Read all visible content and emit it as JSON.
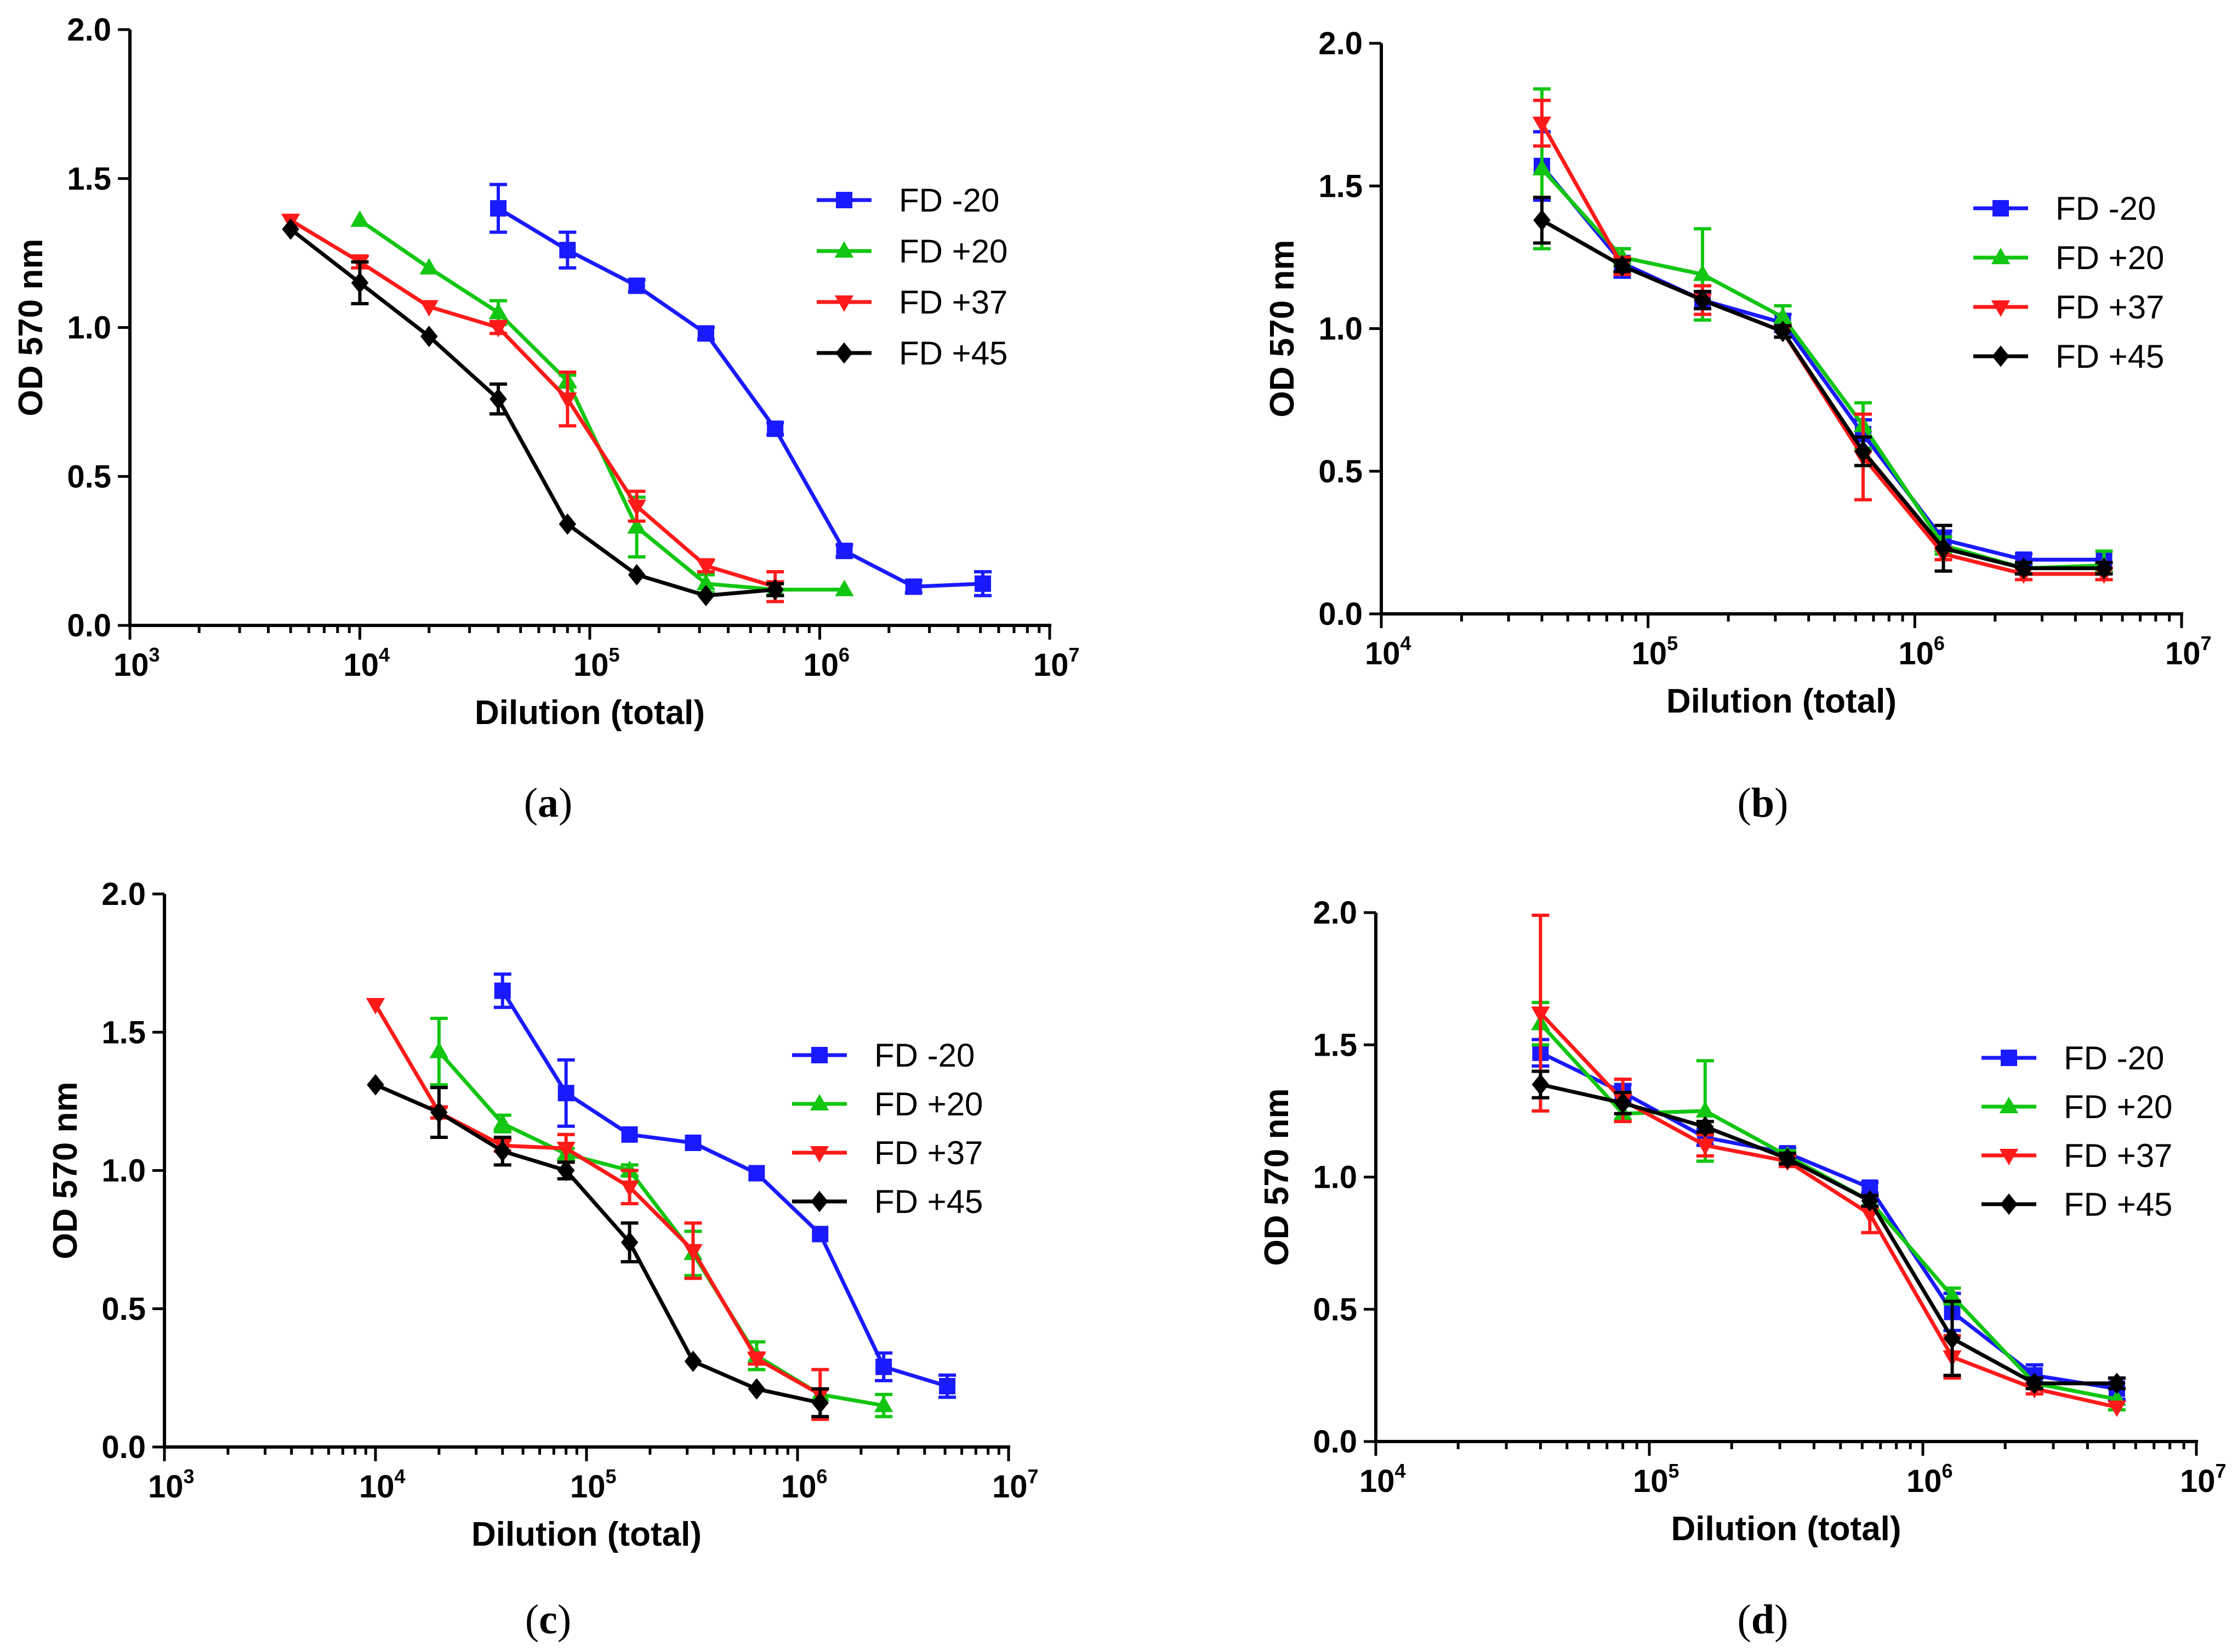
{
  "colors": {
    "FD -20": "#1a1aff",
    "FD +20": "#12c612",
    "FD +37": "#ff1a1a",
    "FD +45": "#000000"
  },
  "chart_data": [
    {
      "panel": "a",
      "type": "line",
      "xscale": "log",
      "xlim": [
        1000,
        10000000
      ],
      "ylim": [
        0,
        2.0
      ],
      "yticks": [
        0.0,
        0.5,
        1.0,
        1.5,
        2.0
      ],
      "ytick_labels": [
        "0.0",
        "0.5",
        "1.0",
        "1.5",
        "2.0"
      ],
      "xtick_exponents": [
        "3",
        "4",
        "5",
        "6",
        "7"
      ],
      "xlabel": "Dilution (total)",
      "ylabel": "OD 570 nm",
      "panel_label": "a",
      "series": [
        {
          "name": "FD -20",
          "marker": "square",
          "x": [
            40000,
            80000,
            160000,
            320000,
            640000,
            1280000,
            2560000,
            5120000
          ],
          "y": [
            1.4,
            1.26,
            1.14,
            0.98,
            0.66,
            0.25,
            0.13,
            0.14
          ],
          "err": [
            0.08,
            0.06,
            0.02,
            0.02,
            0.02,
            0.02,
            0.02,
            0.04
          ]
        },
        {
          "name": "FD +20",
          "marker": "triangle-up",
          "x": [
            10000,
            20000,
            40000,
            80000,
            160000,
            320000,
            640000,
            1280000
          ],
          "y": [
            1.36,
            1.2,
            1.05,
            0.82,
            0.33,
            0.14,
            0.12,
            0.12
          ],
          "err": [
            0.01,
            0.01,
            0.04,
            0.02,
            0.1,
            0.03,
            0.02,
            0.01
          ]
        },
        {
          "name": "FD +37",
          "marker": "triangle-down",
          "x": [
            5000,
            10000,
            20000,
            40000,
            80000,
            160000,
            320000,
            640000
          ],
          "y": [
            1.36,
            1.22,
            1.07,
            1.0,
            0.76,
            0.4,
            0.2,
            0.13
          ],
          "err": [
            0.01,
            0.02,
            0.01,
            0.02,
            0.09,
            0.05,
            0.02,
            0.05
          ]
        },
        {
          "name": "FD +45",
          "marker": "diamond",
          "x": [
            5000,
            10000,
            20000,
            40000,
            80000,
            160000,
            320000,
            640000
          ],
          "y": [
            1.33,
            1.15,
            0.97,
            0.76,
            0.34,
            0.17,
            0.1,
            0.12
          ],
          "err": [
            0.01,
            0.07,
            0.01,
            0.05,
            0.01,
            0.01,
            0.01,
            0.02
          ]
        }
      ]
    },
    {
      "panel": "b",
      "type": "line",
      "xscale": "log",
      "xlim": [
        10000,
        10000000
      ],
      "ylim": [
        0,
        2.0
      ],
      "yticks": [
        0.0,
        0.5,
        1.0,
        1.5,
        2.0
      ],
      "ytick_labels": [
        "0.0",
        "0.5",
        "1.0",
        "1.5",
        "2.0"
      ],
      "xtick_exponents": [
        "4",
        "5",
        "6",
        "7"
      ],
      "xlabel": "Dilution (total)",
      "ylabel": "OD 570 nm",
      "panel_label": "b",
      "series": [
        {
          "name": "FD -20",
          "marker": "square",
          "x": [
            40000,
            80000,
            160000,
            320000,
            640000,
            1280000,
            2560000,
            5120000
          ],
          "y": [
            1.57,
            1.23,
            1.1,
            1.02,
            0.63,
            0.26,
            0.19,
            0.19
          ],
          "err": [
            0.12,
            0.05,
            0.03,
            0.03,
            0.05,
            0.03,
            0.02,
            0.03
          ]
        },
        {
          "name": "FD +20",
          "marker": "triangle-up",
          "x": [
            40000,
            80000,
            160000,
            320000,
            640000,
            1280000,
            2560000,
            5120000
          ],
          "y": [
            1.56,
            1.25,
            1.19,
            1.04,
            0.66,
            0.24,
            0.16,
            0.17
          ],
          "err": [
            0.28,
            0.03,
            0.16,
            0.04,
            0.08,
            0.03,
            0.02,
            0.05
          ]
        },
        {
          "name": "FD +37",
          "marker": "triangle-down",
          "x": [
            40000,
            80000,
            160000,
            320000,
            640000,
            1280000,
            2560000,
            5120000
          ],
          "y": [
            1.72,
            1.22,
            1.1,
            0.99,
            0.55,
            0.21,
            0.14,
            0.14
          ],
          "err": [
            0.08,
            0.03,
            0.05,
            0.02,
            0.15,
            0.02,
            0.02,
            0.02
          ]
        },
        {
          "name": "FD +45",
          "marker": "diamond",
          "x": [
            40000,
            80000,
            160000,
            320000,
            640000,
            1280000,
            2560000,
            5120000
          ],
          "y": [
            1.38,
            1.22,
            1.1,
            0.99,
            0.57,
            0.23,
            0.16,
            0.16
          ],
          "err": [
            0.08,
            0.02,
            0.03,
            0.02,
            0.05,
            0.08,
            0.02,
            0.02
          ]
        }
      ]
    },
    {
      "panel": "c",
      "type": "line",
      "xscale": "log",
      "xlim": [
        1000,
        10000000
      ],
      "ylim": [
        0,
        2.0
      ],
      "yticks": [
        0.0,
        0.5,
        1.0,
        1.5,
        2.0
      ],
      "ytick_labels": [
        "0.0",
        "0.5",
        "1.0",
        "1.5",
        "2.0"
      ],
      "xtick_exponents": [
        "3",
        "4",
        "5",
        "6",
        "7"
      ],
      "xlabel": "Dilution (total)",
      "ylabel": "OD 570 nm",
      "panel_label": "c",
      "series": [
        {
          "name": "FD -20",
          "marker": "square",
          "x": [
            40000,
            80000,
            160000,
            320000,
            640000,
            1280000,
            2560000,
            5120000
          ],
          "y": [
            1.65,
            1.28,
            1.13,
            1.1,
            0.99,
            0.77,
            0.29,
            0.22
          ],
          "err": [
            0.06,
            0.12,
            0.01,
            0.01,
            0.01,
            0.01,
            0.05,
            0.04
          ]
        },
        {
          "name": "FD +20",
          "marker": "triangle-up",
          "x": [
            20000,
            40000,
            80000,
            160000,
            320000,
            640000,
            1280000,
            2560000
          ],
          "y": [
            1.43,
            1.17,
            1.06,
            1.0,
            0.7,
            0.33,
            0.19,
            0.15
          ],
          "err": [
            0.12,
            0.03,
            0.02,
            0.02,
            0.08,
            0.05,
            0.01,
            0.04
          ]
        },
        {
          "name": "FD +37",
          "marker": "triangle-down",
          "x": [
            10000,
            20000,
            40000,
            80000,
            160000,
            320000,
            640000,
            1280000
          ],
          "y": [
            1.6,
            1.21,
            1.09,
            1.08,
            0.94,
            0.71,
            0.32,
            0.19
          ],
          "err": [
            0.01,
            0.02,
            0.02,
            0.05,
            0.06,
            0.1,
            0.02,
            0.09
          ]
        },
        {
          "name": "FD +45",
          "marker": "diamond",
          "x": [
            10000,
            20000,
            40000,
            80000,
            160000,
            320000,
            640000,
            1280000
          ],
          "y": [
            1.31,
            1.21,
            1.07,
            1.0,
            0.74,
            0.31,
            0.21,
            0.16
          ],
          "err": [
            0.01,
            0.09,
            0.05,
            0.03,
            0.07,
            0.01,
            0.01,
            0.05
          ]
        }
      ]
    },
    {
      "panel": "d",
      "type": "line",
      "xscale": "log",
      "xlim": [
        10000,
        10000000
      ],
      "ylim": [
        0,
        2.0
      ],
      "yticks": [
        0.0,
        0.5,
        1.0,
        1.5,
        2.0
      ],
      "ytick_labels": [
        "0.0",
        "0.5",
        "1.0",
        "1.5",
        "2.0"
      ],
      "xtick_exponents": [
        "4",
        "5",
        "6",
        "7"
      ],
      "xlabel": "Dilution (total)",
      "ylabel": "OD 570 nm",
      "panel_label": "d",
      "series": [
        {
          "name": "FD -20",
          "marker": "square",
          "x": [
            40000,
            80000,
            160000,
            320000,
            640000,
            1280000,
            2560000,
            5120000
          ],
          "y": [
            1.47,
            1.32,
            1.15,
            1.09,
            0.96,
            0.49,
            0.25,
            0.2
          ],
          "err": [
            0.05,
            0.03,
            0.03,
            0.02,
            0.02,
            0.07,
            0.04,
            0.04
          ]
        },
        {
          "name": "FD +20",
          "marker": "triangle-up",
          "x": [
            40000,
            80000,
            160000,
            320000,
            640000,
            1280000,
            2560000,
            5120000
          ],
          "y": [
            1.58,
            1.24,
            1.25,
            1.08,
            0.91,
            0.55,
            0.22,
            0.16
          ],
          "err": [
            0.08,
            0.03,
            0.19,
            0.02,
            0.02,
            0.03,
            0.02,
            0.04
          ]
        },
        {
          "name": "FD +37",
          "marker": "triangle-down",
          "x": [
            40000,
            80000,
            160000,
            320000,
            640000,
            1280000,
            2560000,
            5120000
          ],
          "y": [
            1.62,
            1.29,
            1.12,
            1.06,
            0.86,
            0.32,
            0.2,
            0.13
          ],
          "err": [
            0.37,
            0.08,
            0.04,
            0.02,
            0.07,
            0.08,
            0.02,
            0.01
          ]
        },
        {
          "name": "FD +45",
          "marker": "diamond",
          "x": [
            40000,
            80000,
            160000,
            320000,
            640000,
            1280000,
            2560000,
            5120000
          ],
          "y": [
            1.35,
            1.28,
            1.19,
            1.07,
            0.91,
            0.39,
            0.22,
            0.22
          ],
          "err": [
            0.05,
            0.04,
            0.02,
            0.02,
            0.02,
            0.14,
            0.02,
            0.02
          ]
        }
      ]
    }
  ]
}
